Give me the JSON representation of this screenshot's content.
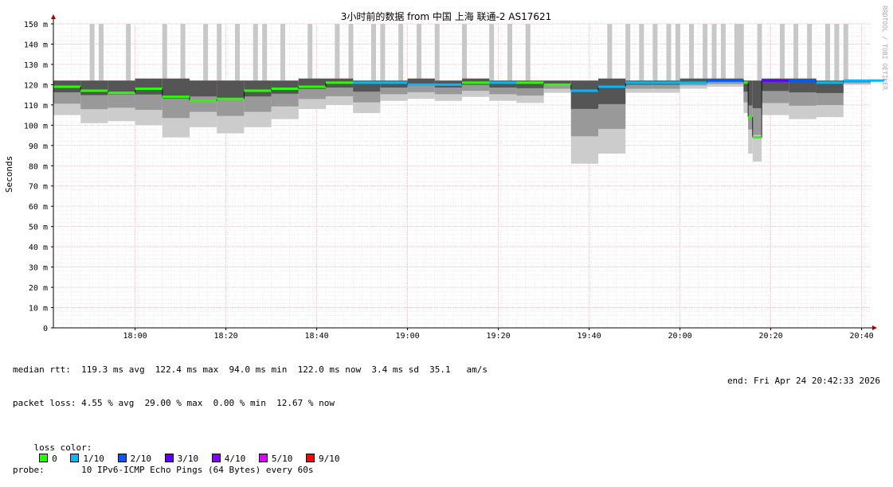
{
  "chart_data": {
    "type": "line",
    "title": "3小时前的数据 from 中国 上海 联通-2 AS17621",
    "ylabel": "Seconds",
    "watermark": "RRDTOOL / TOBI OETIKER",
    "ylim": [
      0,
      150
    ],
    "y_ticks": [
      "0",
      "10 m",
      "20 m",
      "30 m",
      "40 m",
      "50 m",
      "60 m",
      "70 m",
      "80 m",
      "90 m",
      "100 m",
      "110 m",
      "120 m",
      "130 m",
      "140 m",
      "150 m"
    ],
    "x_range": [
      "17:42",
      "20:42"
    ],
    "x_ticks": [
      "18:00",
      "18:20",
      "18:40",
      "19:00",
      "19:20",
      "19:40",
      "20:00",
      "20:20",
      "20:40"
    ],
    "grid": true,
    "x_minutes_from": "17:42",
    "series": [
      {
        "name": "median rtt",
        "x": [
          0,
          6,
          12,
          18,
          24,
          30,
          36,
          42,
          48,
          54,
          60,
          66,
          72,
          78,
          84,
          90,
          96,
          102,
          108,
          114,
          120,
          126,
          132,
          138,
          144,
          150,
          152,
          153,
          154,
          156,
          162,
          168,
          174,
          179
        ],
        "values": [
          119,
          117,
          116,
          118,
          114,
          112,
          113,
          117,
          118,
          119,
          121,
          121,
          121,
          120,
          120,
          121,
          121,
          121,
          120,
          117,
          119,
          121,
          121,
          121,
          122,
          122,
          121,
          104,
          94,
          122,
          122,
          121,
          122,
          122
        ],
        "loss": [
          0,
          0,
          0,
          0,
          0,
          0,
          0,
          0,
          0,
          0,
          0,
          1,
          1,
          1,
          1,
          0,
          1,
          0,
          0,
          1,
          1,
          1,
          1,
          1,
          2,
          2,
          0,
          0,
          0,
          3,
          2,
          1,
          1,
          1
        ]
      },
      {
        "name": "rtt min/max spread",
        "x": [
          0,
          6,
          12,
          18,
          24,
          30,
          36,
          42,
          48,
          54,
          60,
          66,
          72,
          78,
          84,
          90,
          96,
          102,
          108,
          114,
          120,
          126,
          132,
          138,
          144,
          150,
          152,
          153,
          154,
          156,
          162,
          168,
          174,
          179
        ],
        "min": [
          105,
          101,
          102,
          100,
          94,
          99,
          96,
          99,
          103,
          108,
          110,
          106,
          112,
          113,
          112,
          114,
          112,
          111,
          116,
          81,
          86,
          116,
          116,
          118,
          119,
          119,
          106,
          86,
          82,
          105,
          103,
          104,
          120,
          120
        ],
        "max": [
          122,
          122,
          122,
          123,
          123,
          122,
          122,
          122,
          122,
          123,
          123,
          122,
          122,
          123,
          122,
          123,
          122,
          122,
          122,
          122,
          123,
          122,
          122,
          123,
          123,
          123,
          122,
          122,
          122,
          123,
          123,
          122,
          122,
          122
        ]
      }
    ],
    "packet_loss_spikes": [
      {
        "x": 8,
        "to": 150
      },
      {
        "x": 10,
        "to": 150
      },
      {
        "x": 16,
        "to": 150
      },
      {
        "x": 24,
        "to": 150
      },
      {
        "x": 28,
        "to": 150
      },
      {
        "x": 33,
        "to": 150
      },
      {
        "x": 36,
        "to": 150
      },
      {
        "x": 40,
        "to": 150
      },
      {
        "x": 44,
        "to": 150
      },
      {
        "x": 46,
        "to": 150
      },
      {
        "x": 50,
        "to": 150
      },
      {
        "x": 56,
        "to": 150
      },
      {
        "x": 62,
        "to": 150
      },
      {
        "x": 65,
        "to": 150
      },
      {
        "x": 70,
        "to": 150
      },
      {
        "x": 72,
        "to": 150
      },
      {
        "x": 76,
        "to": 150
      },
      {
        "x": 80,
        "to": 150
      },
      {
        "x": 84,
        "to": 150
      },
      {
        "x": 90,
        "to": 150
      },
      {
        "x": 96,
        "to": 150
      },
      {
        "x": 100,
        "to": 150
      },
      {
        "x": 104,
        "to": 150
      },
      {
        "x": 122,
        "to": 150
      },
      {
        "x": 126,
        "to": 150
      },
      {
        "x": 129,
        "to": 150
      },
      {
        "x": 132,
        "to": 150
      },
      {
        "x": 135,
        "to": 150
      },
      {
        "x": 137,
        "to": 150
      },
      {
        "x": 140,
        "to": 150
      },
      {
        "x": 143,
        "to": 150
      },
      {
        "x": 145,
        "to": 150
      },
      {
        "x": 147,
        "to": 150
      },
      {
        "x": 150,
        "to": 150
      },
      {
        "x": 151,
        "to": 150
      },
      {
        "x": 155,
        "to": 150
      },
      {
        "x": 160,
        "to": 150
      },
      {
        "x": 163,
        "to": 150
      },
      {
        "x": 166,
        "to": 150
      },
      {
        "x": 170,
        "to": 150
      },
      {
        "x": 172,
        "to": 150
      },
      {
        "x": 174,
        "to": 150
      }
    ]
  },
  "stats": {
    "median_rtt": "median rtt:  119.3 ms avg  122.4 ms max  94.0 ms min  122.0 ms now  3.4 ms sd  35.1   am/s",
    "packet_loss": "packet loss: 4.55 % avg  29.00 % max  0.00 % min  12.67 % now",
    "loss_color_label": "loss color:",
    "loss_colors": [
      {
        "label": "0",
        "color": "#26ff00"
      },
      {
        "label": "1/10",
        "color": "#00b8ff"
      },
      {
        "label": "2/10",
        "color": "#0059ff"
      },
      {
        "label": "3/10",
        "color": "#5e00ff"
      },
      {
        "label": "4/10",
        "color": "#7e00ff"
      },
      {
        "label": "5/10",
        "color": "#dd00ff"
      },
      {
        "label": "9/10",
        "color": "#ff0000"
      }
    ],
    "probe": "probe:       10 IPv6-ICMP Echo Pings (64 Bytes) every 60s",
    "end": "end: Fri Apr 24 20:42:33 2026"
  },
  "colors": {
    "grid_minor": "#e8e8e8",
    "grid_major": "#ffaaaa",
    "axis": "#000000",
    "smoke_light": "#cccccc",
    "smoke_mid": "#999999",
    "smoke_dark": "#555555",
    "spike": "#c8c8c8"
  }
}
